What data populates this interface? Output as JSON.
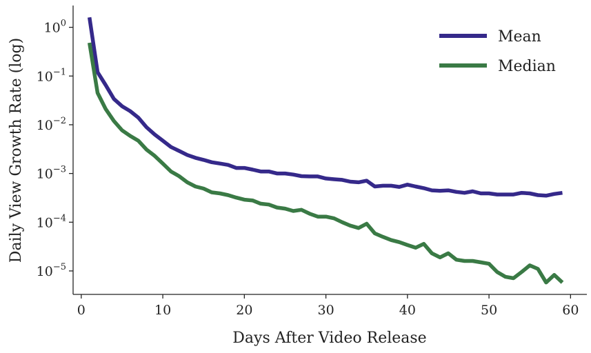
{
  "chart_data": {
    "type": "line",
    "xlabel": "Days After Video Release",
    "ylabel": "Daily View Growth Rate (log)",
    "xlim": [
      -1,
      62
    ],
    "ylim": [
      3.3e-06,
      2.8
    ],
    "yscale": "log",
    "grid": false,
    "legend_position": "top-right",
    "x_ticks": [
      0,
      10,
      20,
      30,
      40,
      50,
      60
    ],
    "y_ticks": [
      {
        "value": 1e-05,
        "base": "10",
        "exp": "−5"
      },
      {
        "value": 0.0001,
        "base": "10",
        "exp": "−4"
      },
      {
        "value": 0.001,
        "base": "10",
        "exp": "−3"
      },
      {
        "value": 0.01,
        "base": "10",
        "exp": "−2"
      },
      {
        "value": 0.1,
        "base": "10",
        "exp": "−1"
      },
      {
        "value": 1,
        "base": "10",
        "exp": "0"
      }
    ],
    "x": [
      1,
      2,
      3,
      4,
      5,
      6,
      7,
      8,
      9,
      10,
      11,
      12,
      13,
      14,
      15,
      16,
      17,
      18,
      19,
      20,
      21,
      22,
      23,
      24,
      25,
      26,
      27,
      28,
      29,
      30,
      31,
      32,
      33,
      34,
      35,
      36,
      37,
      38,
      39,
      40,
      41,
      42,
      43,
      44,
      45,
      46,
      47,
      48,
      49,
      50,
      51,
      52,
      53,
      54,
      55,
      56,
      57,
      58,
      59
    ],
    "series": [
      {
        "name": "Mean",
        "color": "#35298a",
        "values": [
          1.6,
          0.12,
          0.065,
          0.034,
          0.024,
          0.019,
          0.014,
          0.0089,
          0.0063,
          0.0047,
          0.0035,
          0.0029,
          0.0024,
          0.0021,
          0.0019,
          0.0017,
          0.0016,
          0.0015,
          0.0013,
          0.0013,
          0.0012,
          0.0011,
          0.0011,
          0.001,
          0.001,
          0.00095,
          0.00088,
          0.00087,
          0.00087,
          0.00079,
          0.00076,
          0.00074,
          0.00068,
          0.00066,
          0.00071,
          0.00054,
          0.00056,
          0.00056,
          0.00053,
          0.00059,
          0.00054,
          0.0005,
          0.00045,
          0.00044,
          0.00045,
          0.00042,
          0.0004,
          0.00043,
          0.00039,
          0.00039,
          0.00037,
          0.00037,
          0.00037,
          0.0004,
          0.00039,
          0.00036,
          0.00035,
          0.00038,
          0.0004
        ]
      },
      {
        "name": "Median",
        "color": "#3a7a45",
        "values": [
          0.48,
          0.045,
          0.021,
          0.012,
          0.0077,
          0.0059,
          0.0047,
          0.0031,
          0.0023,
          0.0016,
          0.0011,
          0.00088,
          0.00066,
          0.00054,
          0.00049,
          0.00041,
          0.00039,
          0.00036,
          0.00032,
          0.00029,
          0.00028,
          0.00024,
          0.00023,
          0.0002,
          0.00019,
          0.00017,
          0.00018,
          0.00015,
          0.00013,
          0.00013,
          0.00012,
          0.0001,
          8.5e-05,
          7.6e-05,
          9.3e-05,
          5.9e-05,
          5e-05,
          4.3e-05,
          3.9e-05,
          3.4e-05,
          3e-05,
          3.6e-05,
          2.3e-05,
          1.9e-05,
          2.3e-05,
          1.7e-05,
          1.6e-05,
          1.6e-05,
          1.5e-05,
          1.4e-05,
          9.5e-06,
          7.6e-06,
          7.1e-06,
          9.5e-06,
          1.3e-05,
          1.1e-05,
          5.8e-06,
          8.3e-06,
          5.8e-06
        ]
      }
    ]
  }
}
